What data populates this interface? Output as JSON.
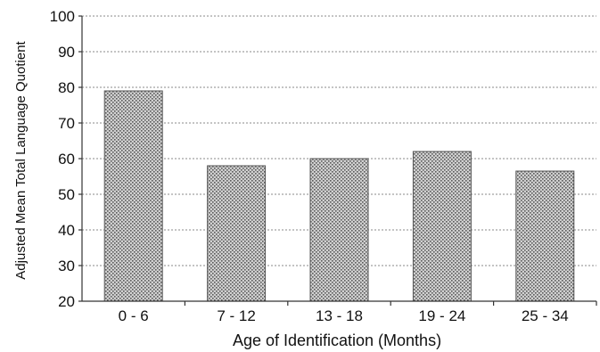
{
  "chart_data": {
    "type": "bar",
    "categories": [
      "0 - 6",
      "7 - 12",
      "13 - 18",
      "19 - 24",
      "25 - 34"
    ],
    "values": [
      79,
      58,
      60,
      62,
      56.5
    ],
    "title": "",
    "xlabel": "Age of Identification (Months)",
    "ylabel": "Adjusted Mean Total Language Quotient",
    "ylim": [
      20,
      100
    ],
    "yticks": [
      20,
      30,
      40,
      50,
      60,
      70,
      80,
      90,
      100
    ],
    "grid": true,
    "legend": "none",
    "bar_color": "#bdbdbd"
  }
}
